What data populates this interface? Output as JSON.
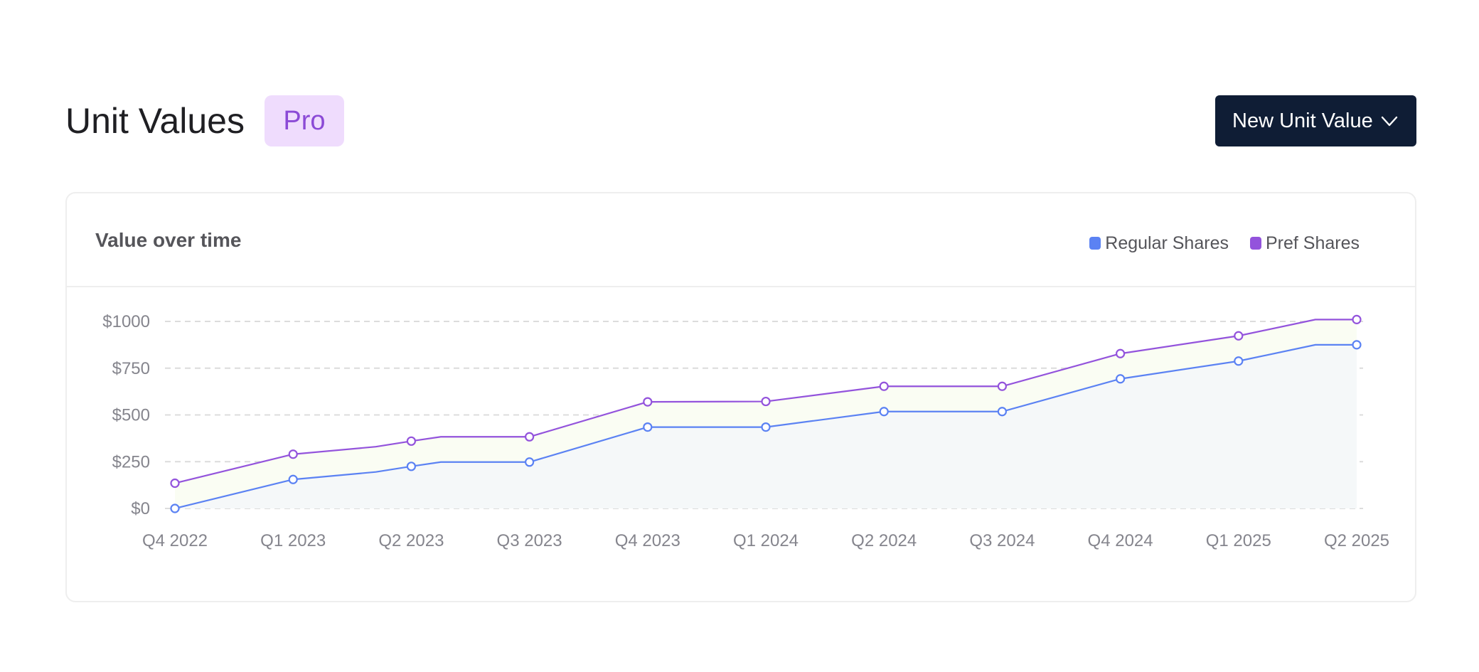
{
  "header": {
    "title": "Unit Values",
    "badge": "Pro",
    "new_button_label": "New Unit Value",
    "new_button_icon": "chevron-down-icon"
  },
  "card": {
    "title": "Value over time",
    "legend": [
      {
        "label": "Regular Shares",
        "color": "#5b82f3"
      },
      {
        "label": "Pref Shares",
        "color": "#9353dc"
      }
    ]
  },
  "colors": {
    "regular": "#5b82f3",
    "pref": "#9353dc",
    "regular_fill": "#f5f8f9",
    "band_fill": "#fafdf3",
    "grid": "#dcdcdc",
    "badge_bg": "#efdcfd",
    "badge_text": "#8b4ad6",
    "button_bg": "#0f1d35"
  },
  "chart_data": {
    "type": "area",
    "title": "Value over time",
    "x_tick_labels": [
      "Q4  2022",
      "Q1  2023",
      "Q2  2023",
      "Q3  2023",
      "Q4  2023",
      "Q1  2024",
      "Q2 2024",
      "Q3  2024",
      "Q4  2024",
      "Q1  2025",
      "Q2  2025"
    ],
    "y_tick_labels": [
      "$0",
      "$250",
      "$500",
      "$750",
      "$1000"
    ],
    "y_ticks": [
      0,
      250,
      500,
      750,
      1000
    ],
    "ylim": [
      0,
      1000
    ],
    "grid": true,
    "legend_position": "top-right",
    "series": [
      {
        "name": "Regular Shares",
        "points": [
          {
            "x": "Q4 2022",
            "y": 0,
            "marker": true
          },
          {
            "x": "Q1 2023",
            "y": 155,
            "marker": true
          },
          {
            "x": "Q1.7 2023",
            "y": 195,
            "marker": false
          },
          {
            "x": "Q2 2023",
            "y": 225,
            "marker": true
          },
          {
            "x": "Q2.25 2023",
            "y": 248,
            "marker": false
          },
          {
            "x": "Q3 2023",
            "y": 248,
            "marker": true
          },
          {
            "x": "Q4 2023",
            "y": 435,
            "marker": true
          },
          {
            "x": "Q1 2024",
            "y": 435,
            "marker": true
          },
          {
            "x": "Q2 2024",
            "y": 518,
            "marker": true
          },
          {
            "x": "Q3 2024",
            "y": 518,
            "marker": true
          },
          {
            "x": "Q4 2024",
            "y": 693,
            "marker": true
          },
          {
            "x": "Q1 2025",
            "y": 788,
            "marker": true
          },
          {
            "x": "Q1.65 2025",
            "y": 875,
            "marker": false
          },
          {
            "x": "Q2 2025",
            "y": 875,
            "marker": true
          }
        ]
      },
      {
        "name": "Pref Shares",
        "points": [
          {
            "x": "Q4 2022",
            "y": 135,
            "marker": true
          },
          {
            "x": "Q1 2023",
            "y": 290,
            "marker": true
          },
          {
            "x": "Q1.7 2023",
            "y": 330,
            "marker": false
          },
          {
            "x": "Q2 2023",
            "y": 360,
            "marker": true
          },
          {
            "x": "Q2.25 2023",
            "y": 383,
            "marker": false
          },
          {
            "x": "Q3 2023",
            "y": 383,
            "marker": true
          },
          {
            "x": "Q4 2023",
            "y": 570,
            "marker": true
          },
          {
            "x": "Q1 2024",
            "y": 572,
            "marker": true
          },
          {
            "x": "Q2 2024",
            "y": 653,
            "marker": true
          },
          {
            "x": "Q3 2024",
            "y": 653,
            "marker": true
          },
          {
            "x": "Q4 2024",
            "y": 828,
            "marker": true
          },
          {
            "x": "Q1 2025",
            "y": 923,
            "marker": true
          },
          {
            "x": "Q1.65 2025",
            "y": 1010,
            "marker": false
          },
          {
            "x": "Q2 2025",
            "y": 1010,
            "marker": true
          }
        ]
      }
    ]
  }
}
